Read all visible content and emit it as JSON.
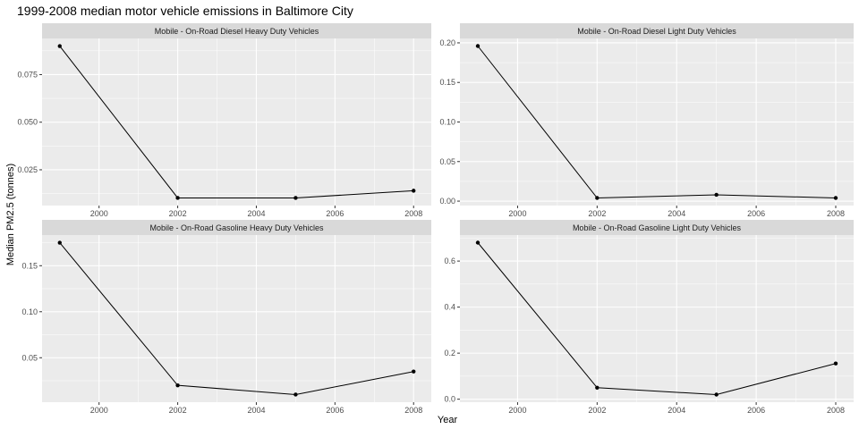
{
  "chart_data": {
    "type": "line",
    "title": "1999-2008 median motor vehicle emissions in Baltimore City",
    "xlabel": "Year",
    "ylabel": "Median PM2.5 (tonnes)",
    "grid": true,
    "x": [
      1999,
      2002,
      2005,
      2008
    ],
    "xticks": [
      2000,
      2002,
      2004,
      2006,
      2008
    ],
    "xlim": [
      1998.55,
      2008.45
    ],
    "panels": [
      {
        "label": "Mobile - On-Road Diesel Heavy Duty Vehicles",
        "values": [
          0.09,
          0.0102,
          0.0102,
          0.014
        ],
        "ylim": [
          0.0062,
          0.094
        ],
        "yticks": [
          0.025,
          0.05,
          0.075
        ],
        "ytick_labels": [
          "0.025",
          "0.050",
          "0.075"
        ]
      },
      {
        "label": "Mobile - On-Road Diesel Light Duty Vehicles",
        "values": [
          0.196,
          0.004,
          0.008,
          0.004
        ],
        "ylim": [
          -0.0056,
          0.2056
        ],
        "yticks": [
          0.0,
          0.05,
          0.1,
          0.15,
          0.2
        ],
        "ytick_labels": [
          "0.00",
          "0.05",
          "0.10",
          "0.15",
          "0.20"
        ]
      },
      {
        "label": "Mobile - On-Road Gasoline Heavy Duty Vehicles",
        "values": [
          0.175,
          0.02,
          0.01,
          0.035
        ],
        "ylim": [
          0.0017,
          0.1833
        ],
        "yticks": [
          0.05,
          0.1,
          0.15
        ],
        "ytick_labels": [
          "0.05",
          "0.10",
          "0.15"
        ]
      },
      {
        "label": "Mobile - On-Road Gasoline Light Duty Vehicles",
        "values": [
          0.68,
          0.05,
          0.02,
          0.155
        ],
        "ylim": [
          -0.013,
          0.713
        ],
        "yticks": [
          0.0,
          0.2,
          0.4,
          0.6
        ],
        "ytick_labels": [
          "0.0",
          "0.2",
          "0.4",
          "0.6"
        ]
      }
    ]
  }
}
